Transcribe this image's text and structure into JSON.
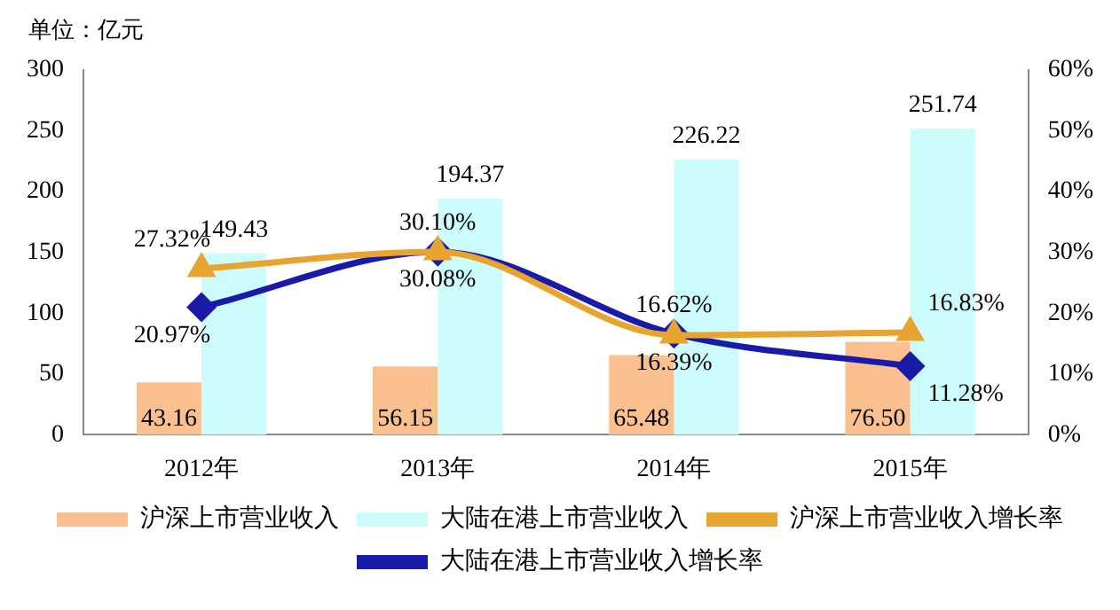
{
  "chart_data": {
    "type": "bar",
    "ylabel": "单位：亿元",
    "categories": [
      "2012年",
      "2013年",
      "2014年",
      "2015年"
    ],
    "series": [
      {
        "name": "沪深上市营业收入",
        "color": "#fac090",
        "values": [
          43.16,
          56.15,
          65.48,
          76.5
        ],
        "value_labels": [
          "43.16",
          "56.15",
          "65.48",
          "76.50"
        ]
      },
      {
        "name": "大陆在港上市营业收入",
        "color": "#ccfcfc",
        "values": [
          149.43,
          194.37,
          226.22,
          251.74
        ],
        "value_labels": [
          "149.43",
          "194.37",
          "226.22",
          "251.74"
        ]
      },
      {
        "name": "沪深上市营业收入增长率",
        "type": "line",
        "axis": "y2",
        "marker": "triangle",
        "color": "#e8a430",
        "values": [
          27.32,
          30.08,
          16.39,
          16.83
        ],
        "value_labels": [
          "27.32%",
          "30.08%",
          "16.39%",
          "16.83%"
        ]
      },
      {
        "name": "大陆在港上市营业收入增长率",
        "type": "line",
        "axis": "y2",
        "marker": "diamond",
        "color": "#1a1aa8",
        "values": [
          20.97,
          30.1,
          16.62,
          11.28
        ],
        "value_labels": [
          "20.97%",
          "30.10%",
          "16.62%",
          "11.28%"
        ]
      }
    ],
    "ylim": [
      0,
      300
    ],
    "yticks": [
      0,
      50,
      100,
      150,
      200,
      250,
      300
    ],
    "y2lim": [
      0,
      60
    ],
    "y2ticks": [
      {
        "value": 0,
        "label": "0%"
      },
      {
        "value": 10,
        "label": "10%"
      },
      {
        "value": 20,
        "label": "20%"
      },
      {
        "value": 30,
        "label": "30%"
      },
      {
        "value": 40,
        "label": "40%"
      },
      {
        "value": 50,
        "label": "50%"
      },
      {
        "value": 60,
        "label": "60%"
      }
    ],
    "grid": false,
    "legend": "bottom"
  }
}
